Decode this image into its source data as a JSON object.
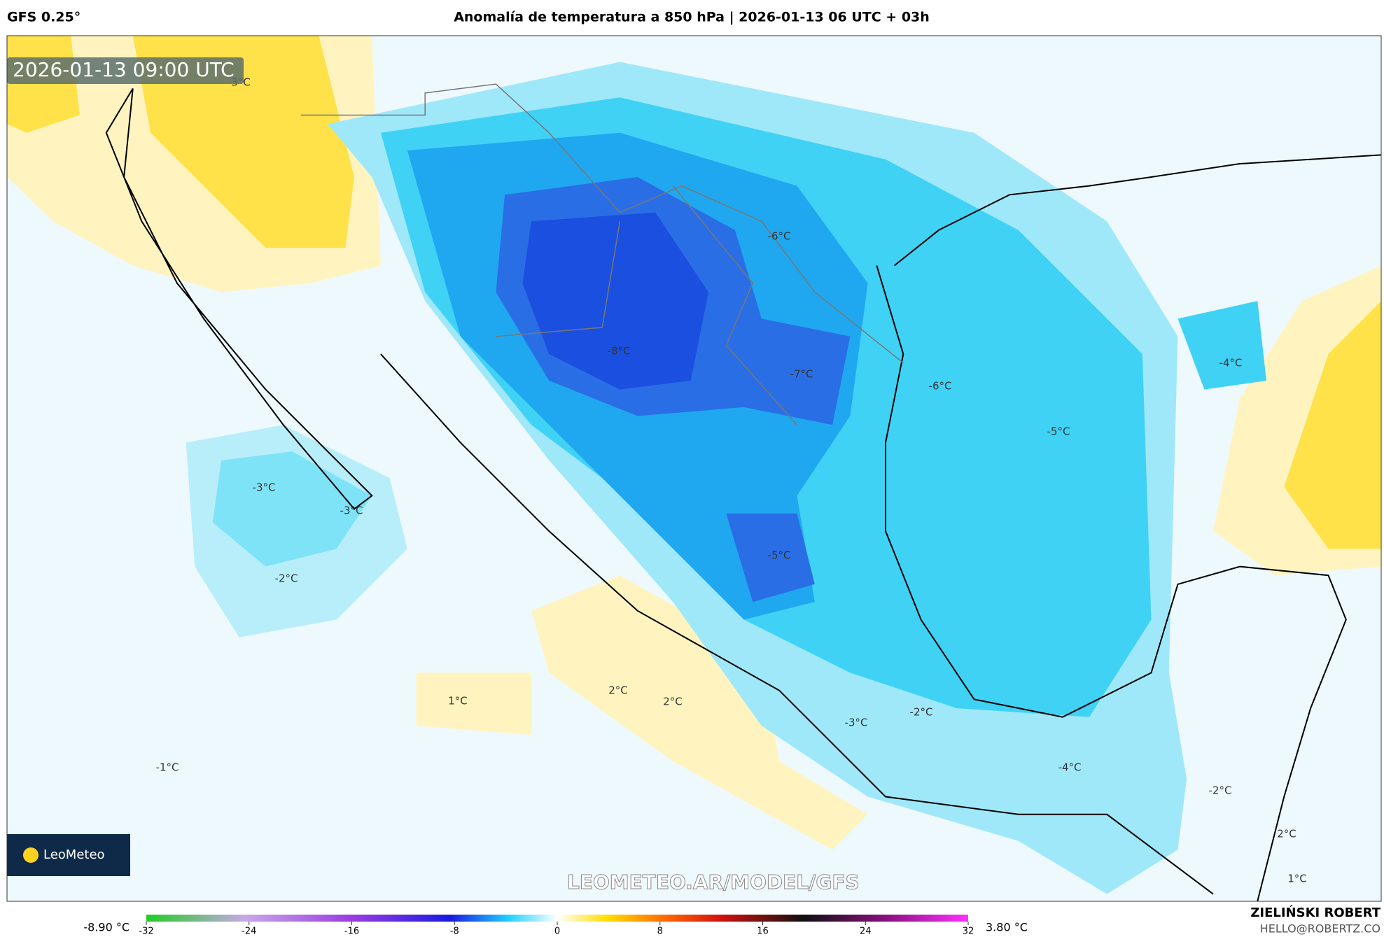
{
  "header": {
    "model": "GFS 0.25°",
    "title": "Anomalía de temperatura a 850 hPa | 2026-01-13 06 UTC + 03h"
  },
  "timestamp": "2026-01-13 09:00 UTC",
  "contour_labels": [
    "-8°C",
    "-7°C",
    "-6°C",
    "-6°C",
    "-5°C",
    "-5°C",
    "-4°C",
    "-4°C",
    "-3°C",
    "-3°C",
    "-3°C",
    "-2°C",
    "-2°C",
    "-2°C",
    "2°C",
    "-1°C",
    "1°C",
    "2°C",
    "2°C",
    "1°C",
    "3°C"
  ],
  "logo": "LeoMeteo",
  "watermark": "LEOMETEO.AR/MODEL/GFS",
  "colorbar": {
    "lim": [
      -32,
      32
    ],
    "ticks": [
      -32,
      -24,
      -16,
      -8,
      0,
      8,
      16,
      24,
      32
    ],
    "min_label": "-8.90 °C",
    "max_label": "3.80 °C"
  },
  "author": {
    "name": "ZIELIŃSKI ROBERT",
    "email": "HELLO@ROBERTZ.CO"
  }
}
